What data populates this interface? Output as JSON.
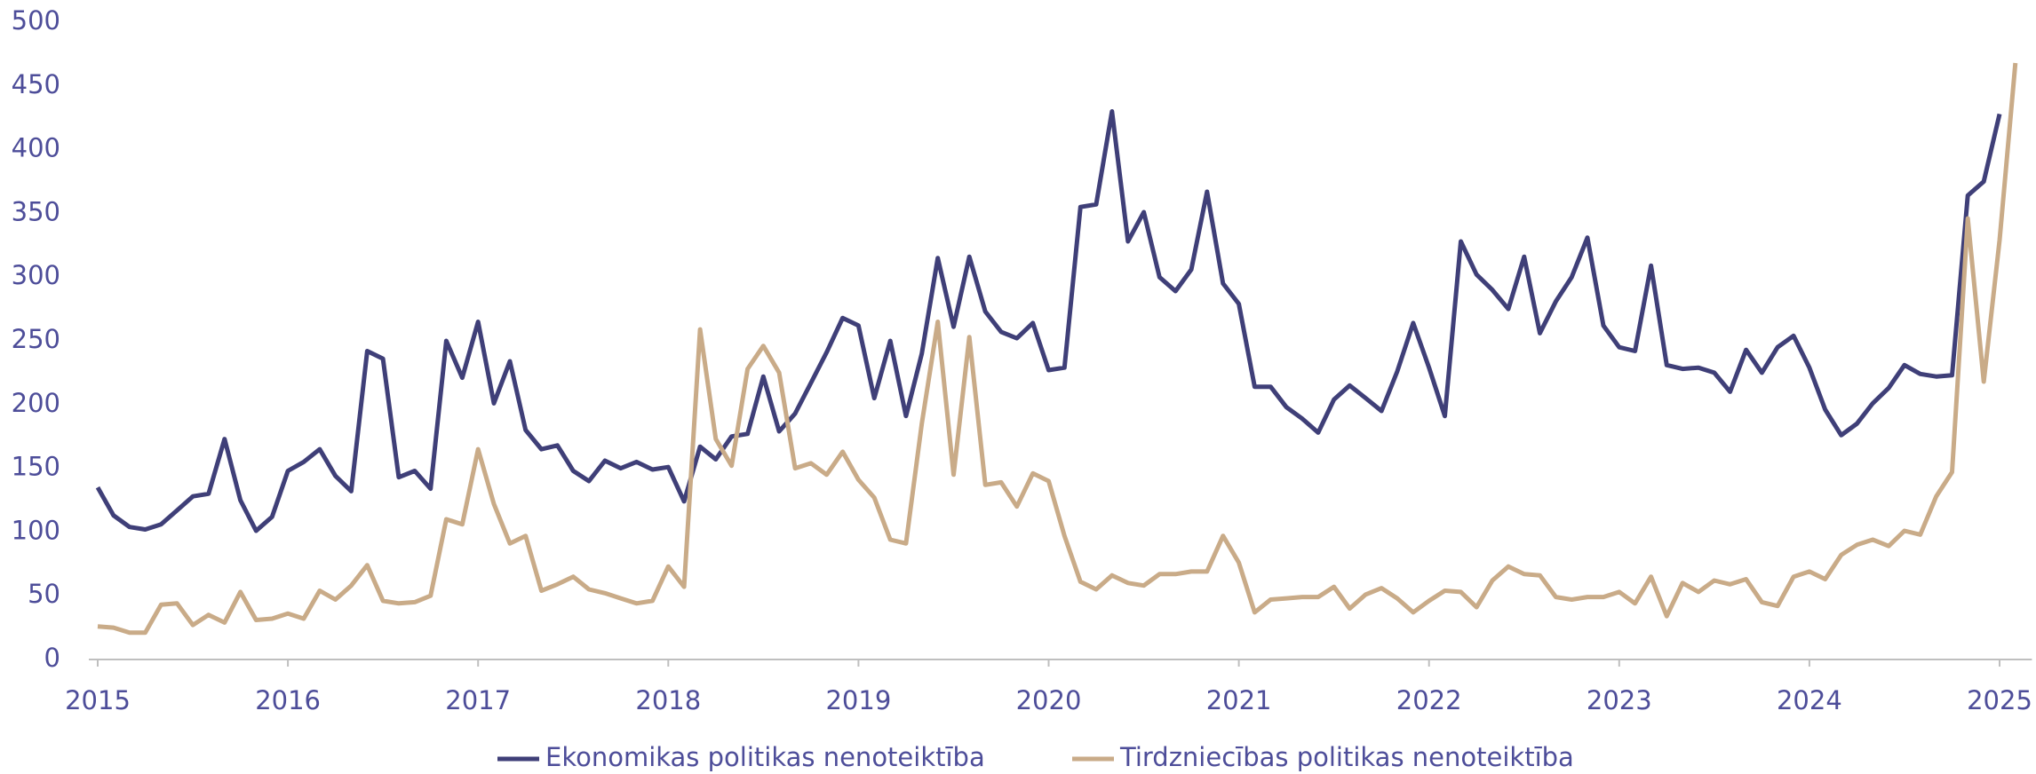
{
  "chart_data": {
    "type": "line",
    "x": [
      2015,
      2015.083,
      2015.167,
      2015.25,
      2015.333,
      2015.417,
      2015.5,
      2015.583,
      2015.667,
      2015.75,
      2015.833,
      2015.917,
      2016,
      2016.083,
      2016.167,
      2016.25,
      2016.333,
      2016.417,
      2016.5,
      2016.583,
      2016.667,
      2016.75,
      2016.833,
      2016.917,
      2017,
      2017.083,
      2017.167,
      2017.25,
      2017.333,
      2017.417,
      2017.5,
      2017.583,
      2017.667,
      2017.75,
      2017.833,
      2017.917,
      2018,
      2018.083,
      2018.167,
      2018.25,
      2018.333,
      2018.417,
      2018.5,
      2018.583,
      2018.667,
      2018.75,
      2018.833,
      2018.917,
      2019,
      2019.083,
      2019.167,
      2019.25,
      2019.333,
      2019.417,
      2019.5,
      2019.583,
      2019.667,
      2019.75,
      2019.833,
      2019.917,
      2020,
      2020.083,
      2020.167,
      2020.25,
      2020.333,
      2020.417,
      2020.5,
      2020.583,
      2020.667,
      2020.75,
      2020.833,
      2020.917,
      2021,
      2021.083,
      2021.167,
      2021.25,
      2021.333,
      2021.417,
      2021.5,
      2021.583,
      2021.667,
      2021.75,
      2021.833,
      2021.917,
      2022,
      2022.083,
      2022.167,
      2022.25,
      2022.333,
      2022.417,
      2022.5,
      2022.583,
      2022.667,
      2022.75,
      2022.833,
      2022.917,
      2023,
      2023.083,
      2023.167,
      2023.25,
      2023.333,
      2023.417,
      2023.5,
      2023.583,
      2023.667,
      2023.75,
      2023.833,
      2023.917,
      2024,
      2024.083,
      2024.167,
      2024.25,
      2024.333,
      2024.417,
      2024.5,
      2024.583,
      2024.667,
      2024.75,
      2024.833,
      2024.917,
      2025,
      2025.083
    ],
    "series": [
      {
        "name": "Ekonomikas politikas nenoteiktība",
        "color": "#3f3f78",
        "values": [
          135,
          113,
          104,
          102,
          106,
          117,
          128,
          130,
          173,
          125,
          101,
          112,
          148,
          155,
          165,
          144,
          132,
          242,
          236,
          143,
          148,
          134,
          250,
          221,
          265,
          201,
          234,
          180,
          165,
          168,
          148,
          140,
          156,
          150,
          155,
          149,
          151,
          124,
          167,
          157,
          175,
          177,
          222,
          179,
          193,
          217,
          241,
          268,
          262,
          205,
          250,
          191,
          240,
          315,
          261,
          316,
          273,
          257,
          252,
          264,
          227,
          229,
          355,
          357,
          430,
          328,
          351,
          300,
          289,
          306,
          367,
          295,
          279,
          214,
          214,
          198,
          189,
          178,
          204,
          215,
          205,
          195,
          226,
          264,
          229,
          191,
          328,
          302,
          290,
          275,
          316,
          256,
          281,
          300,
          331,
          262,
          245,
          242,
          309,
          231,
          228,
          229,
          225,
          210,
          243,
          225,
          245,
          254,
          229,
          196,
          176,
          185,
          201,
          213,
          231,
          224,
          222,
          223,
          364,
          375,
          428,
          null
        ]
      },
      {
        "name": "Tirdzniecības politikas nenoteiktība",
        "color": "#c9ab88",
        "values": [
          26,
          25,
          21,
          21,
          43,
          44,
          27,
          35,
          29,
          53,
          31,
          32,
          36,
          32,
          54,
          47,
          58,
          74,
          46,
          44,
          45,
          50,
          110,
          106,
          165,
          122,
          91,
          97,
          54,
          59,
          65,
          55,
          52,
          48,
          44,
          46,
          73,
          57,
          259,
          173,
          152,
          228,
          246,
          225,
          150,
          154,
          145,
          163,
          141,
          127,
          94,
          91,
          185,
          265,
          145,
          253,
          137,
          139,
          120,
          146,
          140,
          97,
          61,
          55,
          66,
          60,
          58,
          67,
          67,
          69,
          69,
          97,
          76,
          37,
          47,
          48,
          49,
          49,
          57,
          40,
          51,
          56,
          48,
          37,
          46,
          54,
          53,
          41,
          62,
          73,
          67,
          66,
          49,
          47,
          49,
          49,
          53,
          44,
          65,
          34,
          60,
          53,
          62,
          59,
          63,
          45,
          42,
          65,
          69,
          63,
          82,
          90,
          94,
          89,
          101,
          98,
          128,
          147,
          346,
          218,
          329,
          468
        ]
      }
    ],
    "xlim": [
      2015,
      2025.17
    ],
    "xticks": [
      2015,
      2016,
      2017,
      2018,
      2019,
      2020,
      2021,
      2022,
      2023,
      2024,
      2025
    ],
    "ylim": [
      0,
      500
    ],
    "yticks": [
      0,
      50,
      100,
      150,
      200,
      250,
      300,
      350,
      400,
      450,
      500
    ],
    "grid": false,
    "legend": "bottom"
  }
}
